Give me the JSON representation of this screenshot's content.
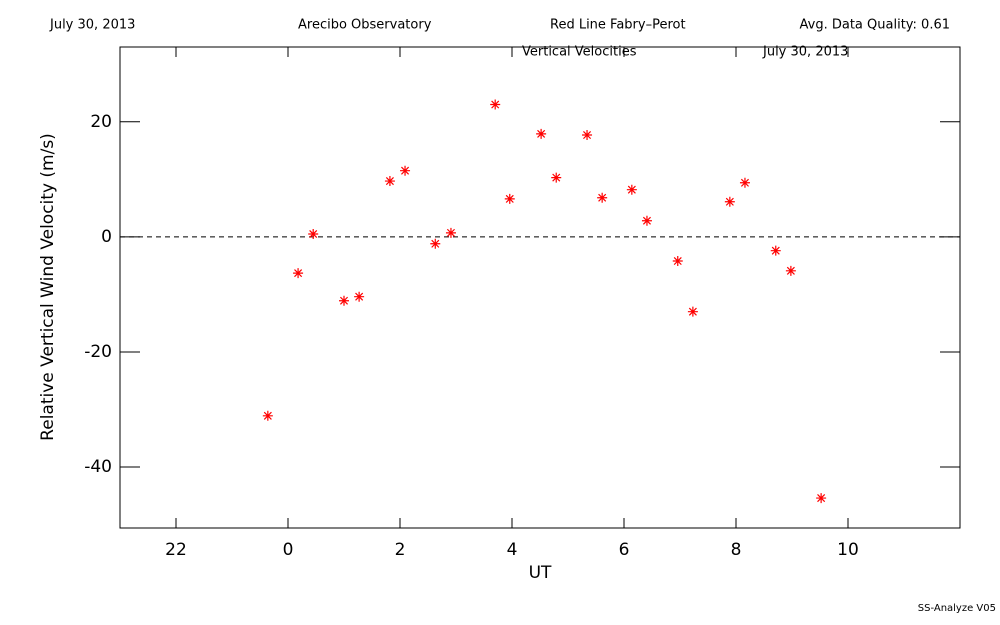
{
  "chart_data": {
    "type": "scatter",
    "header": [
      "July 30, 2013",
      "Arecibo Observatory",
      "Red Line Fabry–Perot",
      "Avg. Data Quality: 0.61"
    ],
    "title": "Vertical Velocities",
    "date": "July 30, 2013",
    "xlabel": "UT",
    "ylabel": "Relative Vertical Wind Velocity (m/s)",
    "footer": "SS-Analyze V05",
    "color": "#ff0000",
    "x": [
      -0.36,
      0.18,
      0.45,
      1.0,
      1.27,
      1.82,
      2.09,
      2.63,
      2.91,
      3.7,
      3.96,
      4.52,
      4.79,
      5.34,
      5.61,
      6.14,
      6.41,
      6.96,
      7.23,
      7.89,
      8.16,
      8.71,
      8.98,
      9.52
    ],
    "values": [
      -31.1,
      -6.3,
      0.5,
      -11.1,
      -10.4,
      9.7,
      11.5,
      -1.2,
      0.7,
      23.0,
      6.6,
      17.9,
      10.3,
      17.7,
      6.8,
      8.2,
      2.8,
      -4.2,
      -13.0,
      6.1,
      9.4,
      -2.4,
      -5.9,
      -45.4
    ],
    "hline": 0,
    "xlim": [
      -3,
      12
    ],
    "xticks": [
      {
        "value": -2,
        "label": "22"
      },
      0,
      2,
      4,
      6,
      8,
      10
    ],
    "ylim": [
      -50.6,
      33
    ],
    "yticks": [
      -40,
      -20,
      0,
      20
    ]
  }
}
